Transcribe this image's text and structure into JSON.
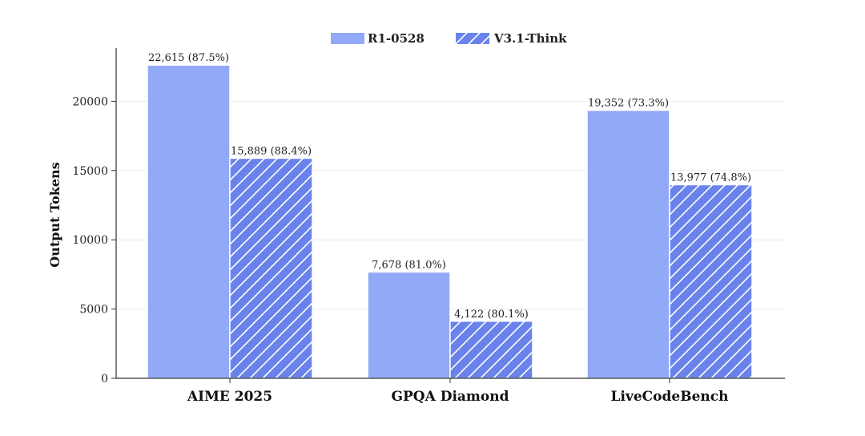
{
  "chart_data": {
    "type": "bar",
    "categories": [
      "AIME 2025",
      "GPQA Diamond",
      "LiveCodeBench"
    ],
    "series": [
      {
        "name": "R1-0528",
        "values": [
          22615,
          7678,
          19352
        ],
        "labels": [
          "22,615 (87.5%)",
          "7,678 (81.0%)",
          "19,352 (73.3%)"
        ],
        "color": "#92a9f7",
        "pattern": "solid"
      },
      {
        "name": "V3.1-Think",
        "values": [
          15889,
          4122,
          13977
        ],
        "labels": [
          "15,889 (88.4%)",
          "4,122 (80.1%)",
          "13,977 (74.8%)"
        ],
        "color": "#6a83ec",
        "pattern": "hatched"
      }
    ],
    "xlabel": "",
    "ylabel": "Output Tokens",
    "ylim": [
      0,
      25000
    ],
    "yticks": [
      0,
      5000,
      10000,
      15000,
      20000
    ],
    "ytick_labels": [
      "0",
      "5000",
      "10000",
      "15000",
      "20000"
    ],
    "grid": true,
    "legend_position": "top-center"
  }
}
